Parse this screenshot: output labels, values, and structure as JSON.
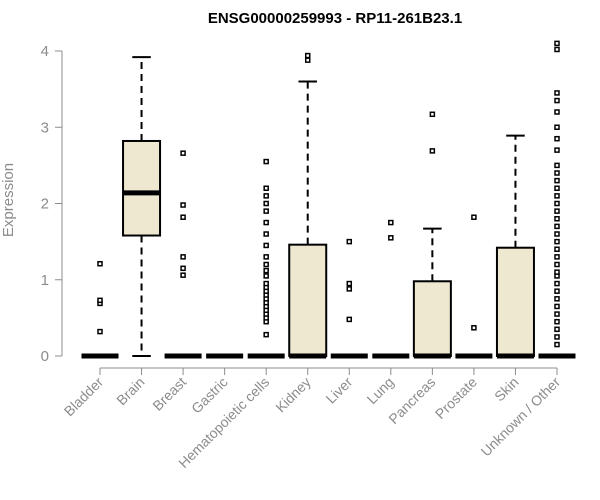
{
  "chart_data": {
    "type": "boxplot",
    "title": "ENSG00000259993 - RP11-261B23.1",
    "ylabel": "Expression",
    "xlabel": "",
    "ylim": [
      0,
      4.1
    ],
    "yticks": [
      0,
      1,
      2,
      3,
      4
    ],
    "categories": [
      "Bladder",
      "Brain",
      "Breast",
      "Gastric",
      "Hematopoietic cells",
      "Kidney",
      "Liver",
      "Lung",
      "Pancreas",
      "Prostate",
      "Skin",
      "Unknown / Other"
    ],
    "series": [
      {
        "category": "Bladder",
        "q1": 0,
        "median": 0,
        "q3": 0,
        "whisker_low": 0,
        "whisker_high": 0,
        "outliers": [
          0.32,
          0.69,
          0.73,
          1.21
        ]
      },
      {
        "category": "Brain",
        "q1": 1.58,
        "median": 2.14,
        "q3": 2.82,
        "whisker_low": 0,
        "whisker_high": 3.92,
        "outliers": []
      },
      {
        "category": "Breast",
        "q1": 0,
        "median": 0,
        "q3": 0,
        "whisker_low": 0,
        "whisker_high": 0,
        "outliers": [
          1.06,
          1.15,
          1.3,
          1.82,
          1.98,
          2.66
        ]
      },
      {
        "category": "Gastric",
        "q1": 0,
        "median": 0,
        "q3": 0,
        "whisker_low": 0,
        "whisker_high": 0,
        "outliers": []
      },
      {
        "category": "Hematopoietic cells",
        "q1": 0,
        "median": 0,
        "q3": 0,
        "whisker_low": 0,
        "whisker_high": 0,
        "outliers": [
          0.28,
          0.45,
          0.5,
          0.55,
          0.6,
          0.65,
          0.7,
          0.75,
          0.8,
          0.85,
          0.9,
          0.95,
          1.05,
          1.12,
          1.2,
          1.3,
          1.45,
          1.6,
          1.75,
          1.9,
          2.0,
          2.1,
          2.2,
          2.55
        ]
      },
      {
        "category": "Kidney",
        "q1": 0,
        "median": 0,
        "q3": 1.46,
        "whisker_low": 0,
        "whisker_high": 3.6,
        "outliers": [
          3.88,
          3.94
        ]
      },
      {
        "category": "Liver",
        "q1": 0,
        "median": 0,
        "q3": 0,
        "whisker_low": 0,
        "whisker_high": 0,
        "outliers": [
          0.48,
          0.88,
          0.95,
          1.5
        ]
      },
      {
        "category": "Lung",
        "q1": 0,
        "median": 0,
        "q3": 0,
        "whisker_low": 0,
        "whisker_high": 0,
        "outliers": [
          1.55,
          1.75
        ]
      },
      {
        "category": "Pancreas",
        "q1": 0,
        "median": 0,
        "q3": 0.98,
        "whisker_low": 0,
        "whisker_high": 1.67,
        "outliers": [
          2.69,
          3.17
        ]
      },
      {
        "category": "Prostate",
        "q1": 0,
        "median": 0,
        "q3": 0,
        "whisker_low": 0,
        "whisker_high": 0,
        "outliers": [
          0.37,
          1.82
        ]
      },
      {
        "category": "Skin",
        "q1": 0,
        "median": 0,
        "q3": 1.42,
        "whisker_low": 0,
        "whisker_high": 2.89,
        "outliers": []
      },
      {
        "category": "Unknown / Other",
        "q1": 0,
        "median": 0,
        "q3": 0,
        "whisker_low": 0,
        "whisker_high": 0,
        "outliers": [
          0.15,
          0.25,
          0.35,
          0.45,
          0.55,
          0.65,
          0.75,
          0.85,
          0.95,
          1.05,
          1.1,
          1.2,
          1.3,
          1.4,
          1.5,
          1.6,
          1.7,
          1.8,
          1.9,
          2.0,
          2.1,
          2.2,
          2.3,
          2.4,
          2.5,
          2.7,
          2.85,
          3.0,
          3.2,
          3.35,
          3.45,
          4.02,
          4.1
        ]
      }
    ],
    "grid": false,
    "legend": "none",
    "colors": {
      "box_fill": "#efe8d0",
      "stroke": "#000000",
      "axis": "#8c8c8c"
    }
  }
}
